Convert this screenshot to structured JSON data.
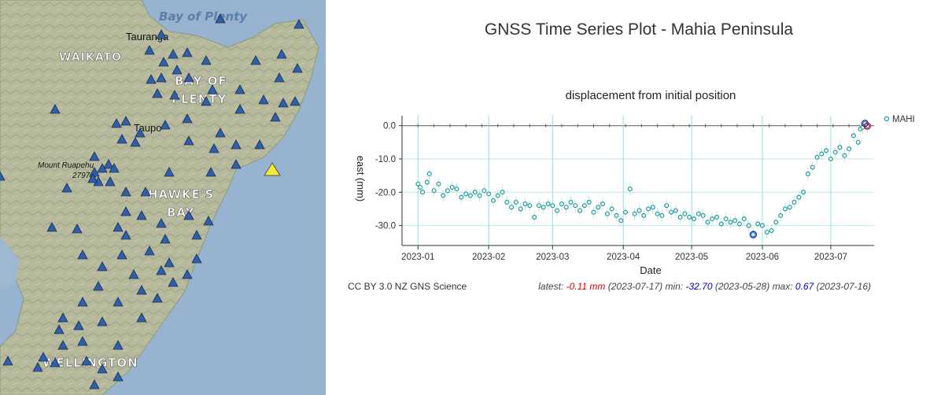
{
  "map": {
    "sea_label": "Bay of Plenty",
    "regions": [
      "WAIKATO",
      "BAY OF",
      "PLENTY",
      "HAWKE'S",
      "BAY",
      "WELLINGTON"
    ],
    "towns": [
      "Tauranga",
      "Taupo",
      "Mount Ruapehu",
      "2797m"
    ],
    "colors": {
      "sea": "#97b3cf",
      "land": "#b3b79a",
      "station": "#2f5fa8",
      "selected_station": "#f3ea38"
    }
  },
  "page_title": "GNSS Time Series Plot - Mahia Peninsula",
  "credit": "CC BY 3.0 NZ GNS Science",
  "stats": {
    "latest_label": "latest:",
    "latest_value": "-0.11 mm",
    "latest_date": "(2023-07-17)",
    "min_label": "min:",
    "min_value": "-32.70",
    "min_date": "(2023-05-28)",
    "max_label": "max:",
    "max_value": "0.67",
    "max_date": "(2023-07-16)"
  },
  "chart_data": {
    "type": "scatter",
    "title": "displacement from initial position",
    "xlabel": "Date",
    "ylabel": "east (mm)",
    "x_ticks": [
      "2023-01",
      "2023-02",
      "2023-03",
      "2023-04",
      "2023-05",
      "2023-06",
      "2023-07"
    ],
    "x_range": [
      "2022-12-25",
      "2023-07-20"
    ],
    "y_ticks": [
      0.0,
      -10.0,
      -20.0,
      -30.0
    ],
    "y_tick_labels": [
      "0.0",
      "-10.0",
      "-20.0",
      "-30.0"
    ],
    "ylim": [
      -36,
      3
    ],
    "grid": true,
    "legend": "top-right",
    "series": [
      {
        "name": "MAHI",
        "color": "#1a9a9a",
        "x": [
          "2023-01-01",
          "2023-01-02",
          "2023-01-03",
          "2023-01-05",
          "2023-01-06",
          "2023-01-08",
          "2023-01-10",
          "2023-01-12",
          "2023-01-14",
          "2023-01-16",
          "2023-01-18",
          "2023-01-20",
          "2023-01-22",
          "2023-01-24",
          "2023-01-26",
          "2023-01-28",
          "2023-01-30",
          "2023-02-01",
          "2023-02-03",
          "2023-02-05",
          "2023-02-07",
          "2023-02-09",
          "2023-02-11",
          "2023-02-13",
          "2023-02-15",
          "2023-02-17",
          "2023-02-19",
          "2023-02-21",
          "2023-02-23",
          "2023-02-25",
          "2023-02-27",
          "2023-03-01",
          "2023-03-03",
          "2023-03-05",
          "2023-03-07",
          "2023-03-09",
          "2023-03-11",
          "2023-03-13",
          "2023-03-15",
          "2023-03-17",
          "2023-03-19",
          "2023-03-21",
          "2023-03-23",
          "2023-03-25",
          "2023-03-27",
          "2023-03-29",
          "2023-03-31",
          "2023-04-02",
          "2023-04-04",
          "2023-04-06",
          "2023-04-08",
          "2023-04-10",
          "2023-04-12",
          "2023-04-14",
          "2023-04-16",
          "2023-04-18",
          "2023-04-20",
          "2023-04-22",
          "2023-04-24",
          "2023-04-26",
          "2023-04-28",
          "2023-04-30",
          "2023-05-02",
          "2023-05-04",
          "2023-05-06",
          "2023-05-08",
          "2023-05-10",
          "2023-05-12",
          "2023-05-14",
          "2023-05-16",
          "2023-05-18",
          "2023-05-20",
          "2023-05-22",
          "2023-05-24",
          "2023-05-26",
          "2023-05-28",
          "2023-05-30",
          "2023-06-01",
          "2023-06-03",
          "2023-06-05",
          "2023-06-07",
          "2023-06-09",
          "2023-06-11",
          "2023-06-13",
          "2023-06-15",
          "2023-06-17",
          "2023-06-19",
          "2023-06-21",
          "2023-06-23",
          "2023-06-25",
          "2023-06-27",
          "2023-06-29",
          "2023-07-01",
          "2023-07-03",
          "2023-07-05",
          "2023-07-07",
          "2023-07-09",
          "2023-07-11",
          "2023-07-13",
          "2023-07-14",
          "2023-07-15",
          "2023-07-16",
          "2023-07-17"
        ],
        "y": [
          -17.5,
          -18.5,
          -20.0,
          -17.0,
          -14.5,
          -19.5,
          -17.5,
          -21.0,
          -19.5,
          -18.5,
          -19.0,
          -21.5,
          -20.5,
          -21.0,
          -20.0,
          -21.0,
          -19.5,
          -20.5,
          -22.5,
          -21.0,
          -20.0,
          -23.0,
          -24.5,
          -23.0,
          -25.0,
          -23.5,
          -24.0,
          -27.5,
          -24.0,
          -24.5,
          -23.5,
          -24.0,
          -25.5,
          -23.5,
          -24.5,
          -23.0,
          -24.0,
          -25.5,
          -24.0,
          -23.0,
          -26.0,
          -24.5,
          -23.5,
          -26.5,
          -25.0,
          -27.0,
          -28.5,
          -26.0,
          -19.0,
          -26.5,
          -25.5,
          -27.0,
          -25.0,
          -24.5,
          -26.5,
          -27.0,
          -24.0,
          -26.0,
          -25.5,
          -27.5,
          -26.5,
          -27.5,
          -28.0,
          -26.5,
          -27.0,
          -29.0,
          -28.0,
          -27.5,
          -29.5,
          -28.0,
          -29.0,
          -28.5,
          -29.5,
          -28.0,
          -30.0,
          -32.7,
          -29.5,
          -30.0,
          -32.0,
          -31.5,
          -29.0,
          -27.0,
          -25.0,
          -24.5,
          -23.0,
          -21.5,
          -20.0,
          -14.5,
          -12.5,
          -9.5,
          -8.5,
          -7.5,
          -10.0,
          -8.0,
          -6.5,
          -9.0,
          -7.0,
          -3.0,
          -5.0,
          -1.0,
          -0.5,
          0.67,
          -0.11
        ]
      }
    ]
  }
}
